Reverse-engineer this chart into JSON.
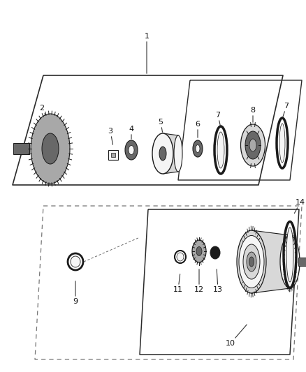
{
  "bg_color": "#ffffff",
  "fig_width": 4.38,
  "fig_height": 5.33,
  "dpi": 100,
  "line_color": "#2a2a2a",
  "gray_light": "#d8d8d8",
  "gray_med": "#a8a8a8",
  "gray_dark": "#686868",
  "black": "#1a1a1a",
  "white": "#f5f5f5",
  "label_fs": 8.0,
  "label_color": "#111111"
}
